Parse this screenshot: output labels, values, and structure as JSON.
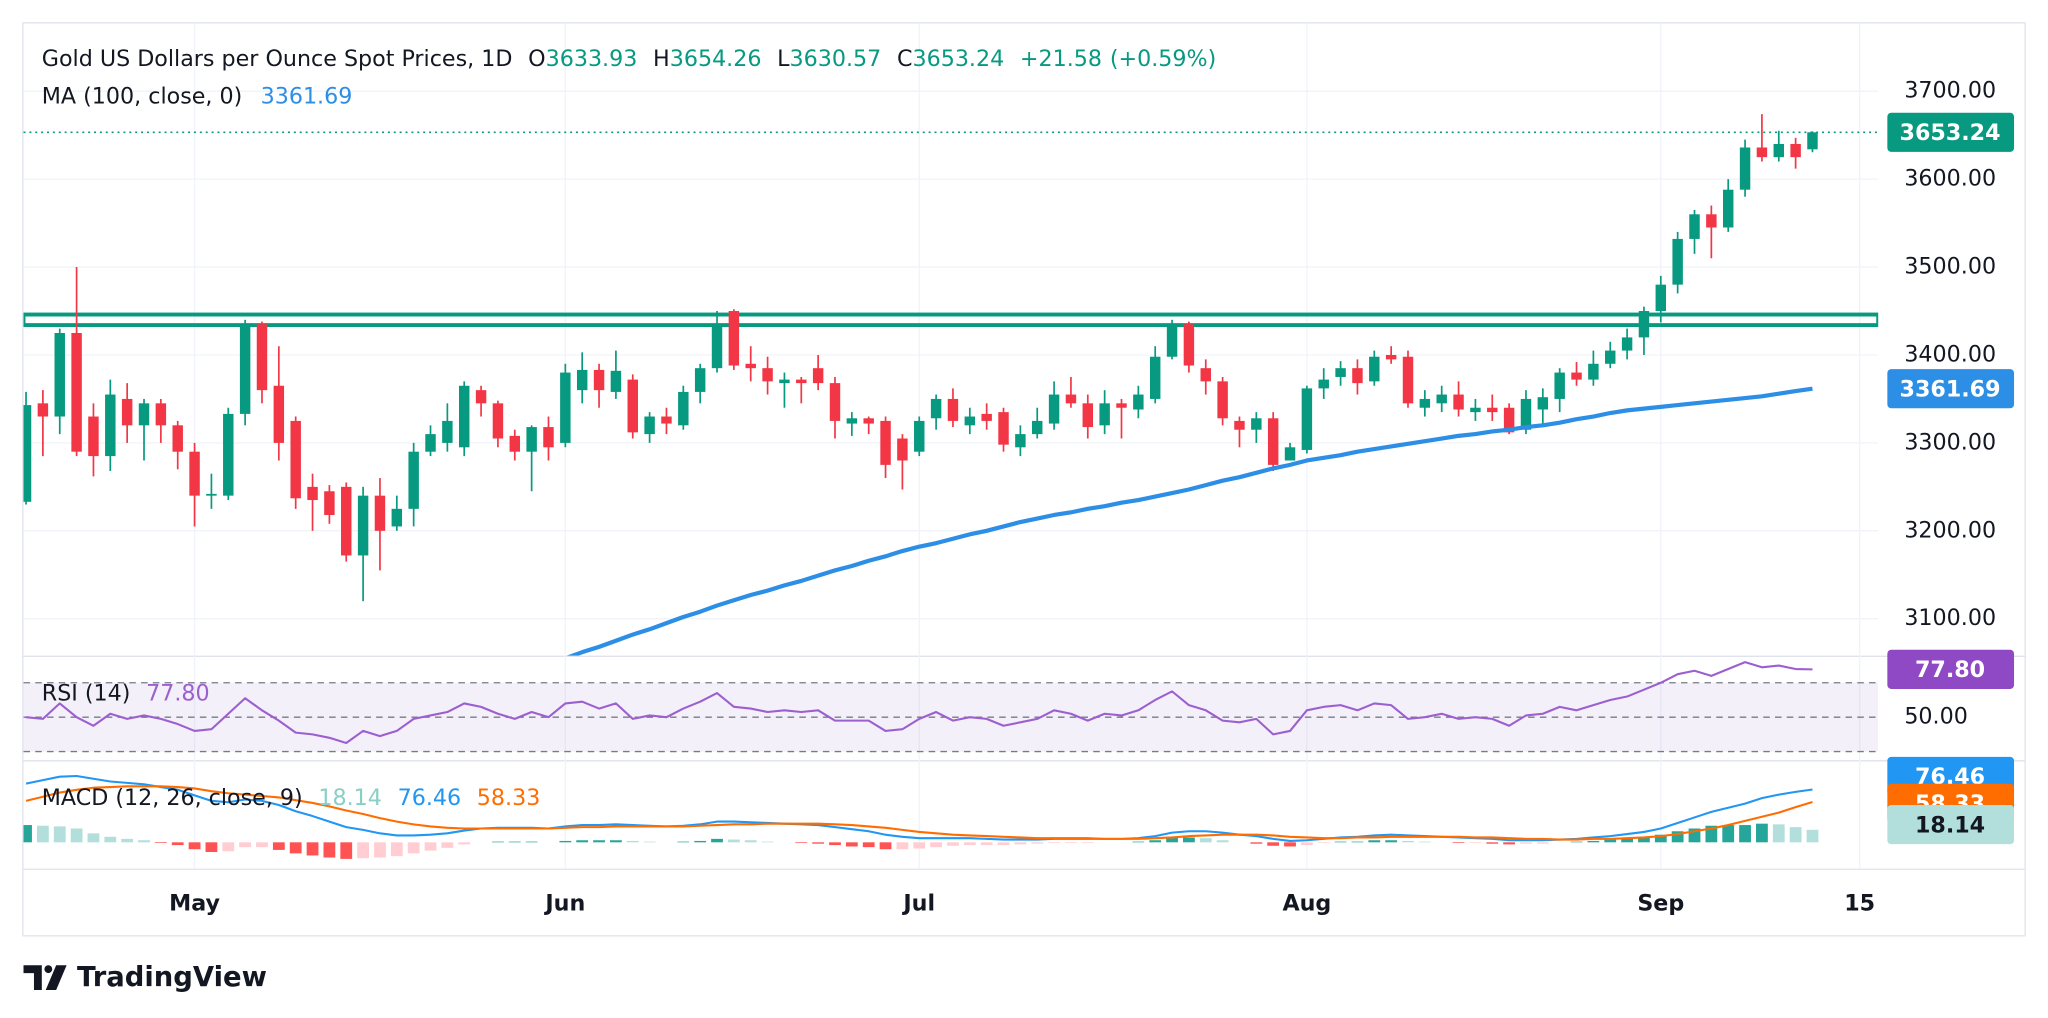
{
  "chart_data": {
    "type": "candlestick",
    "title": "Gold US Dollars per Ounce Spot Prices, 1D",
    "ohlc_labels": [
      "O",
      "H",
      "L",
      "C"
    ],
    "change": {
      "value": 21.58,
      "label": "+21.58"
    },
    "change_pct": {
      "value": 0.59,
      "label": "(+0.59%)"
    },
    "up_color": "#089981",
    "down_color": "#f23645",
    "open": [
      3233,
      3345,
      3330,
      3425,
      3330,
      3285,
      3350,
      3320,
      3345,
      3320,
      3290,
      3240,
      3240,
      3333,
      3435,
      3365,
      3325,
      3250,
      3245,
      3250,
      3172,
      3240,
      3205,
      3225,
      3290,
      3300,
      3295,
      3360,
      3345,
      3308,
      3290,
      3318,
      3300,
      3360,
      3383,
      3358,
      3372,
      3310,
      3330,
      3320,
      3358,
      3385,
      3450,
      3390,
      3385,
      3368,
      3372,
      3385,
      3368,
      3322,
      3328,
      3325,
      3305,
      3290,
      3328,
      3350,
      3320,
      3333,
      3335,
      3295,
      3310,
      3322,
      3355,
      3345,
      3320,
      3345,
      3338,
      3350,
      3398,
      3435,
      3385,
      3370,
      3325,
      3315,
      3328,
      3280,
      3292,
      3362,
      3375,
      3385,
      3370,
      3400,
      3398,
      3340,
      3345,
      3355,
      3335,
      3340,
      3340,
      3315,
      3338,
      3350,
      3380,
      3372,
      3390,
      3405,
      3420,
      3450,
      3480,
      3532,
      3560,
      3545,
      3588,
      3636,
      3625,
      3640,
      3633.93
    ],
    "high": [
      3358,
      3360,
      3430,
      3500,
      3345,
      3372,
      3368,
      3350,
      3350,
      3325,
      3300,
      3265,
      3340,
      3440,
      3438,
      3410,
      3330,
      3265,
      3252,
      3255,
      3250,
      3260,
      3240,
      3300,
      3320,
      3345,
      3370,
      3365,
      3348,
      3315,
      3320,
      3330,
      3390,
      3403,
      3390,
      3405,
      3378,
      3335,
      3340,
      3365,
      3390,
      3450,
      3452,
      3410,
      3398,
      3380,
      3375,
      3400,
      3375,
      3335,
      3330,
      3330,
      3310,
      3330,
      3355,
      3362,
      3340,
      3345,
      3340,
      3320,
      3340,
      3370,
      3375,
      3355,
      3360,
      3350,
      3365,
      3410,
      3440,
      3438,
      3395,
      3375,
      3330,
      3335,
      3335,
      3300,
      3365,
      3385,
      3393,
      3395,
      3405,
      3410,
      3405,
      3360,
      3365,
      3370,
      3350,
      3355,
      3345,
      3360,
      3362,
      3385,
      3392,
      3405,
      3415,
      3430,
      3455,
      3490,
      3540,
      3565,
      3570,
      3600,
      3645,
      3674,
      3655,
      3647,
      3654.26
    ],
    "low": [
      3230,
      3285,
      3310,
      3285,
      3262,
      3268,
      3300,
      3280,
      3300,
      3270,
      3205,
      3225,
      3235,
      3320,
      3345,
      3280,
      3225,
      3200,
      3208,
      3165,
      3120,
      3155,
      3200,
      3205,
      3285,
      3290,
      3285,
      3330,
      3295,
      3280,
      3245,
      3280,
      3295,
      3345,
      3340,
      3350,
      3305,
      3300,
      3310,
      3315,
      3345,
      3380,
      3383,
      3370,
      3355,
      3340,
      3345,
      3360,
      3305,
      3308,
      3310,
      3260,
      3247,
      3285,
      3315,
      3318,
      3310,
      3315,
      3290,
      3285,
      3305,
      3315,
      3340,
      3305,
      3310,
      3305,
      3328,
      3345,
      3395,
      3380,
      3355,
      3320,
      3295,
      3300,
      3268,
      3280,
      3288,
      3350,
      3365,
      3355,
      3365,
      3390,
      3340,
      3330,
      3335,
      3330,
      3325,
      3325,
      3310,
      3310,
      3322,
      3335,
      3365,
      3365,
      3385,
      3395,
      3400,
      3437,
      3470,
      3515,
      3510,
      3540,
      3580,
      3620,
      3620,
      3612,
      3630.57
    ],
    "close": [
      3343,
      3330,
      3425,
      3290,
      3285,
      3355,
      3320,
      3345,
      3320,
      3290,
      3240,
      3242,
      3333,
      3435,
      3360,
      3300,
      3237,
      3235,
      3218,
      3172,
      3240,
      3200,
      3225,
      3290,
      3310,
      3325,
      3365,
      3345,
      3305,
      3290,
      3318,
      3295,
      3380,
      3383,
      3360,
      3382,
      3312,
      3330,
      3322,
      3358,
      3385,
      3432,
      3388,
      3385,
      3370,
      3372,
      3368,
      3368,
      3325,
      3328,
      3322,
      3275,
      3280,
      3325,
      3350,
      3325,
      3330,
      3325,
      3298,
      3310,
      3325,
      3355,
      3345,
      3318,
      3345,
      3340,
      3355,
      3398,
      3432,
      3388,
      3370,
      3328,
      3315,
      3328,
      3275,
      3295,
      3362,
      3372,
      3385,
      3368,
      3398,
      3395,
      3345,
      3350,
      3355,
      3338,
      3340,
      3335,
      3312,
      3350,
      3352,
      3380,
      3372,
      3390,
      3405,
      3420,
      3450,
      3480,
      3532,
      3560,
      3545,
      3588,
      3636,
      3625,
      3640,
      3625,
      3653.24
    ],
    "xlim": [
      -0.15,
      109.9
    ],
    "xticks": [
      {
        "value": 10,
        "label": "May"
      },
      {
        "value": 32,
        "label": "Jun"
      },
      {
        "value": 53,
        "label": "Jul"
      },
      {
        "value": 76,
        "label": "Aug"
      },
      {
        "value": 97,
        "label": "Sep"
      },
      {
        "value": 108.8,
        "label": "15"
      }
    ],
    "ylim": [
      3058,
      3777
    ],
    "yticks": [
      {
        "value": 3100,
        "label": "3100.00"
      },
      {
        "value": 3200,
        "label": "3200.00"
      },
      {
        "value": 3300,
        "label": "3300.00"
      },
      {
        "value": 3400,
        "label": "3400.00"
      },
      {
        "value": 3500,
        "label": "3500.00"
      },
      {
        "value": 3600,
        "label": "3600.00"
      },
      {
        "value": 3700,
        "label": "3700.00"
      }
    ],
    "grid": true,
    "moving_average": {
      "name": "MA (100, close, 0)",
      "color": "#2d8ee6",
      "values": [
        null,
        null,
        null,
        null,
        null,
        null,
        null,
        null,
        null,
        null,
        null,
        null,
        null,
        null,
        null,
        null,
        null,
        null,
        null,
        null,
        null,
        null,
        null,
        null,
        null,
        null,
        null,
        null,
        null,
        null,
        null,
        null,
        3055,
        3062,
        3068,
        3075,
        3082,
        3088,
        3095,
        3102,
        3108,
        3115,
        3121,
        3127,
        3132,
        3138,
        3143,
        3149,
        3155,
        3160,
        3166,
        3171,
        3177,
        3182,
        3186,
        3191,
        3196,
        3200,
        3205,
        3210,
        3214,
        3218,
        3221,
        3225,
        3228,
        3232,
        3235,
        3239,
        3243,
        3247,
        3252,
        3257,
        3261,
        3266,
        3271,
        3275,
        3280,
        3283,
        3286,
        3290,
        3293,
        3296,
        3299,
        3302,
        3305,
        3308,
        3310,
        3313,
        3315,
        3318,
        3320,
        3323,
        3327,
        3330,
        3334,
        3337,
        3339,
        3341,
        3343,
        3345,
        3347,
        3349,
        3351,
        3353,
        3356,
        3359,
        3361.69
      ]
    },
    "zone": {
      "values": [
        3434,
        3446
      ],
      "color": "#089981"
    },
    "rsi": {
      "name": "RSI (14)",
      "color": "#9c5fd0",
      "tag_color": "#9049c4",
      "last_label": "77.80",
      "values": [
        50,
        49,
        58,
        50,
        45,
        52,
        49,
        51,
        49,
        46,
        42,
        43,
        52,
        61,
        54,
        48,
        41,
        40,
        38,
        35,
        42,
        39,
        42,
        49,
        51,
        53,
        58,
        56,
        52,
        49,
        53,
        50,
        58,
        59,
        55,
        58,
        49,
        51,
        50,
        55,
        59,
        64,
        56,
        55,
        53,
        54,
        53,
        54,
        48,
        48,
        48,
        42,
        43,
        49,
        53,
        48,
        50,
        49,
        45,
        47,
        49,
        54,
        52,
        48,
        52,
        51,
        54,
        60,
        65,
        57,
        54,
        48,
        47,
        49,
        40,
        42,
        54,
        56,
        57,
        54,
        58,
        57,
        49,
        50,
        52,
        49,
        50,
        49,
        45,
        51,
        52,
        56,
        54,
        57,
        60,
        62,
        66,
        70,
        75,
        77,
        74,
        78,
        82,
        79,
        80,
        78,
        77.8
      ],
      "ylim": [
        25,
        85
      ],
      "yticks": [
        {
          "value": 50,
          "label": "50.00"
        }
      ],
      "levels": [
        30,
        50,
        70
      ]
    },
    "macd": {
      "name": "MACD (12, 26, close, 9)",
      "ylim": [
        -38,
        117
      ],
      "histogram": {
        "colors": [
          "#26a69a",
          "#b2dfdb",
          "#ffcdd2",
          "#ff5252"
        ],
        "values": [
          25,
          24,
          23,
          20,
          13,
          8,
          5,
          3,
          -1,
          -4,
          -10,
          -14,
          -13,
          -7,
          -7,
          -11,
          -16,
          -19,
          -22,
          -24,
          -23,
          -22,
          -20,
          -16,
          -12,
          -8,
          -3,
          0,
          1,
          1,
          1,
          0,
          2,
          3,
          3,
          3,
          2,
          1,
          0,
          1,
          2,
          5,
          4,
          3,
          1,
          0,
          -1,
          -2,
          -4,
          -6,
          -7,
          -10,
          -10,
          -9,
          -7,
          -5,
          -4,
          -4,
          -4,
          -3,
          -2,
          -1,
          -1,
          -1,
          0,
          0,
          1,
          3,
          7,
          7,
          6,
          3,
          0,
          -2,
          -5,
          -6,
          -4,
          -1,
          1,
          1,
          3,
          3,
          2,
          1,
          0,
          -1,
          -1,
          -2,
          -3,
          -2,
          -2,
          0,
          1,
          2,
          4,
          6,
          8,
          11,
          16,
          20,
          24,
          25,
          25,
          27,
          26,
          22,
          18.14
        ]
      },
      "macd_line": {
        "color": "#2196f3",
        "values": [
          85,
          90,
          95,
          96,
          92,
          88,
          86,
          84,
          80,
          76,
          68,
          60,
          58,
          62,
          60,
          54,
          45,
          38,
          30,
          22,
          18,
          13,
          10,
          10,
          11,
          13,
          17,
          20,
          21,
          21,
          21,
          20,
          23,
          25,
          25,
          26,
          25,
          24,
          23,
          24,
          26,
          30,
          30,
          29,
          28,
          27,
          26,
          25,
          22,
          19,
          16,
          11,
          8,
          6,
          6,
          6,
          6,
          5,
          4,
          4,
          4,
          5,
          5,
          5,
          5,
          5,
          6,
          9,
          14,
          16,
          16,
          14,
          11,
          9,
          5,
          2,
          3,
          5,
          7,
          8,
          10,
          11,
          10,
          9,
          8,
          7,
          6,
          5,
          3,
          3,
          3,
          4,
          5,
          7,
          9,
          12,
          15,
          20,
          28,
          36,
          44,
          50,
          56,
          64,
          69,
          73,
          76.46
        ]
      },
      "signal_line": {
        "color": "#ff6d00",
        "values": [
          60,
          66,
          72,
          76,
          79,
          80,
          81,
          81,
          81,
          80,
          78,
          74,
          71,
          69,
          67,
          65,
          61,
          57,
          52,
          46,
          41,
          35,
          30,
          26,
          23,
          21,
          20,
          20,
          20,
          20,
          20,
          20,
          21,
          22,
          22,
          23,
          23,
          23,
          23,
          23,
          24,
          25,
          26,
          26,
          27,
          27,
          27,
          27,
          26,
          25,
          23,
          21,
          18,
          15,
          13,
          11,
          10,
          9,
          8,
          7,
          6,
          6,
          6,
          6,
          5,
          5,
          5,
          6,
          7,
          9,
          10,
          11,
          11,
          11,
          10,
          8,
          7,
          6,
          6,
          7,
          7,
          8,
          8,
          8,
          8,
          8,
          7,
          7,
          6,
          5,
          5,
          4,
          4,
          5,
          5,
          6,
          7,
          9,
          12,
          16,
          20,
          25,
          31,
          37,
          43,
          51,
          58.33
        ]
      }
    }
  },
  "footer": "TradingView"
}
